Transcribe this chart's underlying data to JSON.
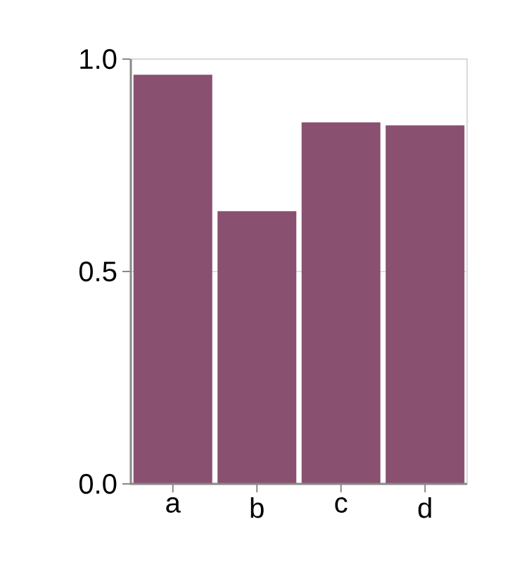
{
  "chart_data": {
    "type": "bar",
    "categories": [
      "a",
      "b",
      "c",
      "d"
    ],
    "values": [
      0.963,
      0.642,
      0.851,
      0.844
    ],
    "color": "#8a5070",
    "ylim": [
      0,
      1
    ],
    "yticks": [
      {
        "value": 0,
        "label": "0.0"
      },
      {
        "value": 0.5,
        "label": "0.5"
      },
      {
        "value": 1,
        "label": "1.0"
      }
    ],
    "grid": "y"
  }
}
